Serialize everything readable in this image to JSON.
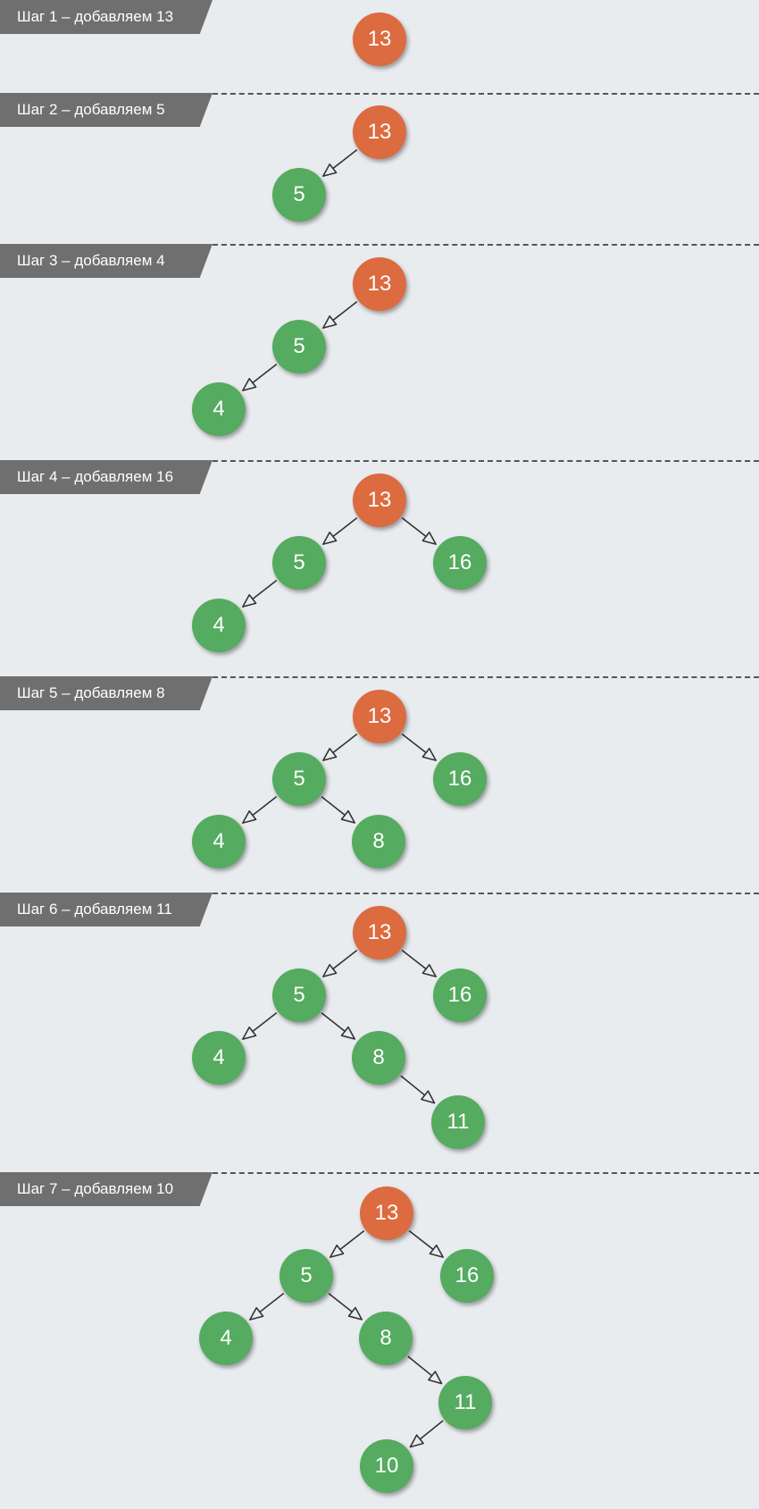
{
  "colors": {
    "background": "#e9ecef",
    "root_node": "#dc6b40",
    "child_node": "#55ab5f",
    "label_bg": "#6f6f6f",
    "edge": "#333333",
    "separator": "#555555"
  },
  "steps": [
    {
      "label": "Шаг 1 – добавляем 13",
      "nodes": [
        {
          "id": "n13",
          "value": "13",
          "role": "root"
        }
      ],
      "edges": []
    },
    {
      "label": "Шаг 2 – добавляем 5",
      "nodes": [
        {
          "id": "n13",
          "value": "13",
          "role": "root"
        },
        {
          "id": "n5",
          "value": "5",
          "role": "child"
        }
      ],
      "edges": [
        {
          "from": "n13",
          "to": "n5"
        }
      ]
    },
    {
      "label": "Шаг 3 – добавляем 4",
      "nodes": [
        {
          "id": "n13",
          "value": "13",
          "role": "root"
        },
        {
          "id": "n5",
          "value": "5",
          "role": "child"
        },
        {
          "id": "n4",
          "value": "4",
          "role": "child"
        }
      ],
      "edges": [
        {
          "from": "n13",
          "to": "n5"
        },
        {
          "from": "n5",
          "to": "n4"
        }
      ]
    },
    {
      "label": "Шаг 4 – добавляем 16",
      "nodes": [
        {
          "id": "n13",
          "value": "13",
          "role": "root"
        },
        {
          "id": "n5",
          "value": "5",
          "role": "child"
        },
        {
          "id": "n16",
          "value": "16",
          "role": "child"
        },
        {
          "id": "n4",
          "value": "4",
          "role": "child"
        }
      ],
      "edges": [
        {
          "from": "n13",
          "to": "n5"
        },
        {
          "from": "n13",
          "to": "n16"
        },
        {
          "from": "n5",
          "to": "n4"
        }
      ]
    },
    {
      "label": "Шаг 5 – добавляем 8",
      "nodes": [
        {
          "id": "n13",
          "value": "13",
          "role": "root"
        },
        {
          "id": "n5",
          "value": "5",
          "role": "child"
        },
        {
          "id": "n16",
          "value": "16",
          "role": "child"
        },
        {
          "id": "n4",
          "value": "4",
          "role": "child"
        },
        {
          "id": "n8",
          "value": "8",
          "role": "child"
        }
      ],
      "edges": [
        {
          "from": "n13",
          "to": "n5"
        },
        {
          "from": "n13",
          "to": "n16"
        },
        {
          "from": "n5",
          "to": "n4"
        },
        {
          "from": "n5",
          "to": "n8"
        }
      ]
    },
    {
      "label": "Шаг 6 – добавляем 11",
      "nodes": [
        {
          "id": "n13",
          "value": "13",
          "role": "root"
        },
        {
          "id": "n5",
          "value": "5",
          "role": "child"
        },
        {
          "id": "n16",
          "value": "16",
          "role": "child"
        },
        {
          "id": "n4",
          "value": "4",
          "role": "child"
        },
        {
          "id": "n8",
          "value": "8",
          "role": "child"
        },
        {
          "id": "n11",
          "value": "11",
          "role": "child"
        }
      ],
      "edges": [
        {
          "from": "n13",
          "to": "n5"
        },
        {
          "from": "n13",
          "to": "n16"
        },
        {
          "from": "n5",
          "to": "n4"
        },
        {
          "from": "n5",
          "to": "n8"
        },
        {
          "from": "n8",
          "to": "n11"
        }
      ]
    },
    {
      "label": "Шаг 7 – добавляем 10",
      "nodes": [
        {
          "id": "n13",
          "value": "13",
          "role": "root"
        },
        {
          "id": "n5",
          "value": "5",
          "role": "child"
        },
        {
          "id": "n16",
          "value": "16",
          "role": "child"
        },
        {
          "id": "n4",
          "value": "4",
          "role": "child"
        },
        {
          "id": "n8",
          "value": "8",
          "role": "child"
        },
        {
          "id": "n11",
          "value": "11",
          "role": "child"
        },
        {
          "id": "n10",
          "value": "10",
          "role": "child"
        }
      ],
      "edges": [
        {
          "from": "n13",
          "to": "n5"
        },
        {
          "from": "n13",
          "to": "n16"
        },
        {
          "from": "n5",
          "to": "n4"
        },
        {
          "from": "n5",
          "to": "n8"
        },
        {
          "from": "n8",
          "to": "n11"
        },
        {
          "from": "n11",
          "to": "n10"
        }
      ]
    }
  ]
}
